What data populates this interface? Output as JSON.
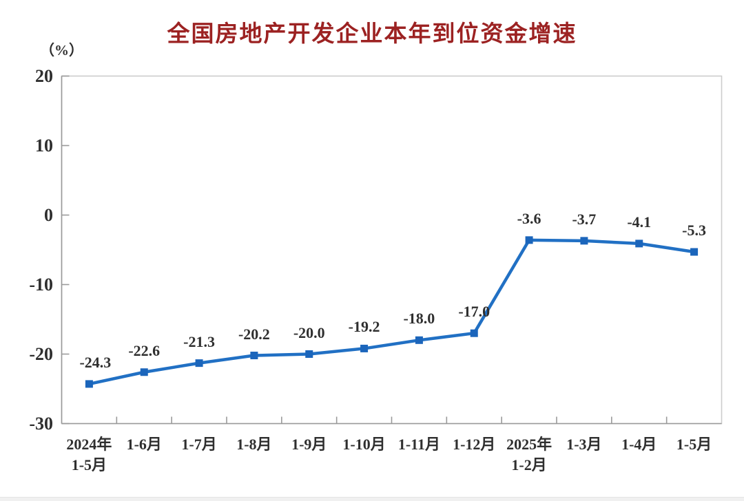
{
  "chart_data": {
    "type": "line",
    "title": "全国房地产开发企业本年到位资金增速",
    "unit_label": "（%）",
    "categories": [
      [
        "2024年",
        "1-5月"
      ],
      [
        "1-6月"
      ],
      [
        "1-7月"
      ],
      [
        "1-8月"
      ],
      [
        "1-9月"
      ],
      [
        "1-10月"
      ],
      [
        "1-11月"
      ],
      [
        "1-12月"
      ],
      [
        "2025年",
        "1-2月"
      ],
      [
        "1-3月"
      ],
      [
        "1-4月"
      ],
      [
        "1-5月"
      ]
    ],
    "values": [
      -24.3,
      -22.6,
      -21.3,
      -20.2,
      -20.0,
      -19.2,
      -18.0,
      -17.0,
      -3.6,
      -3.7,
      -4.1,
      -5.3
    ],
    "point_labels": [
      "-24.3",
      "-22.6",
      "-21.3",
      "-20.2",
      "-20.0",
      "-19.2",
      "-18.0",
      "-17.0",
      "-3.6",
      "-3.7",
      "-4.1",
      "-5.3"
    ],
    "y_ticks": [
      "20",
      "10",
      "0",
      "-10",
      "-20",
      "-30"
    ],
    "ylim": [
      -30,
      20
    ],
    "grid": false,
    "legend_position": "none",
    "marker_shape": "square",
    "colors": {
      "line": "#2170c4",
      "marker": "#1b65bb",
      "title": "#9c2222",
      "axis_text": "#2f2f2f",
      "axis_line": "#9a9a9a",
      "plot_border": "#cccccc"
    }
  }
}
